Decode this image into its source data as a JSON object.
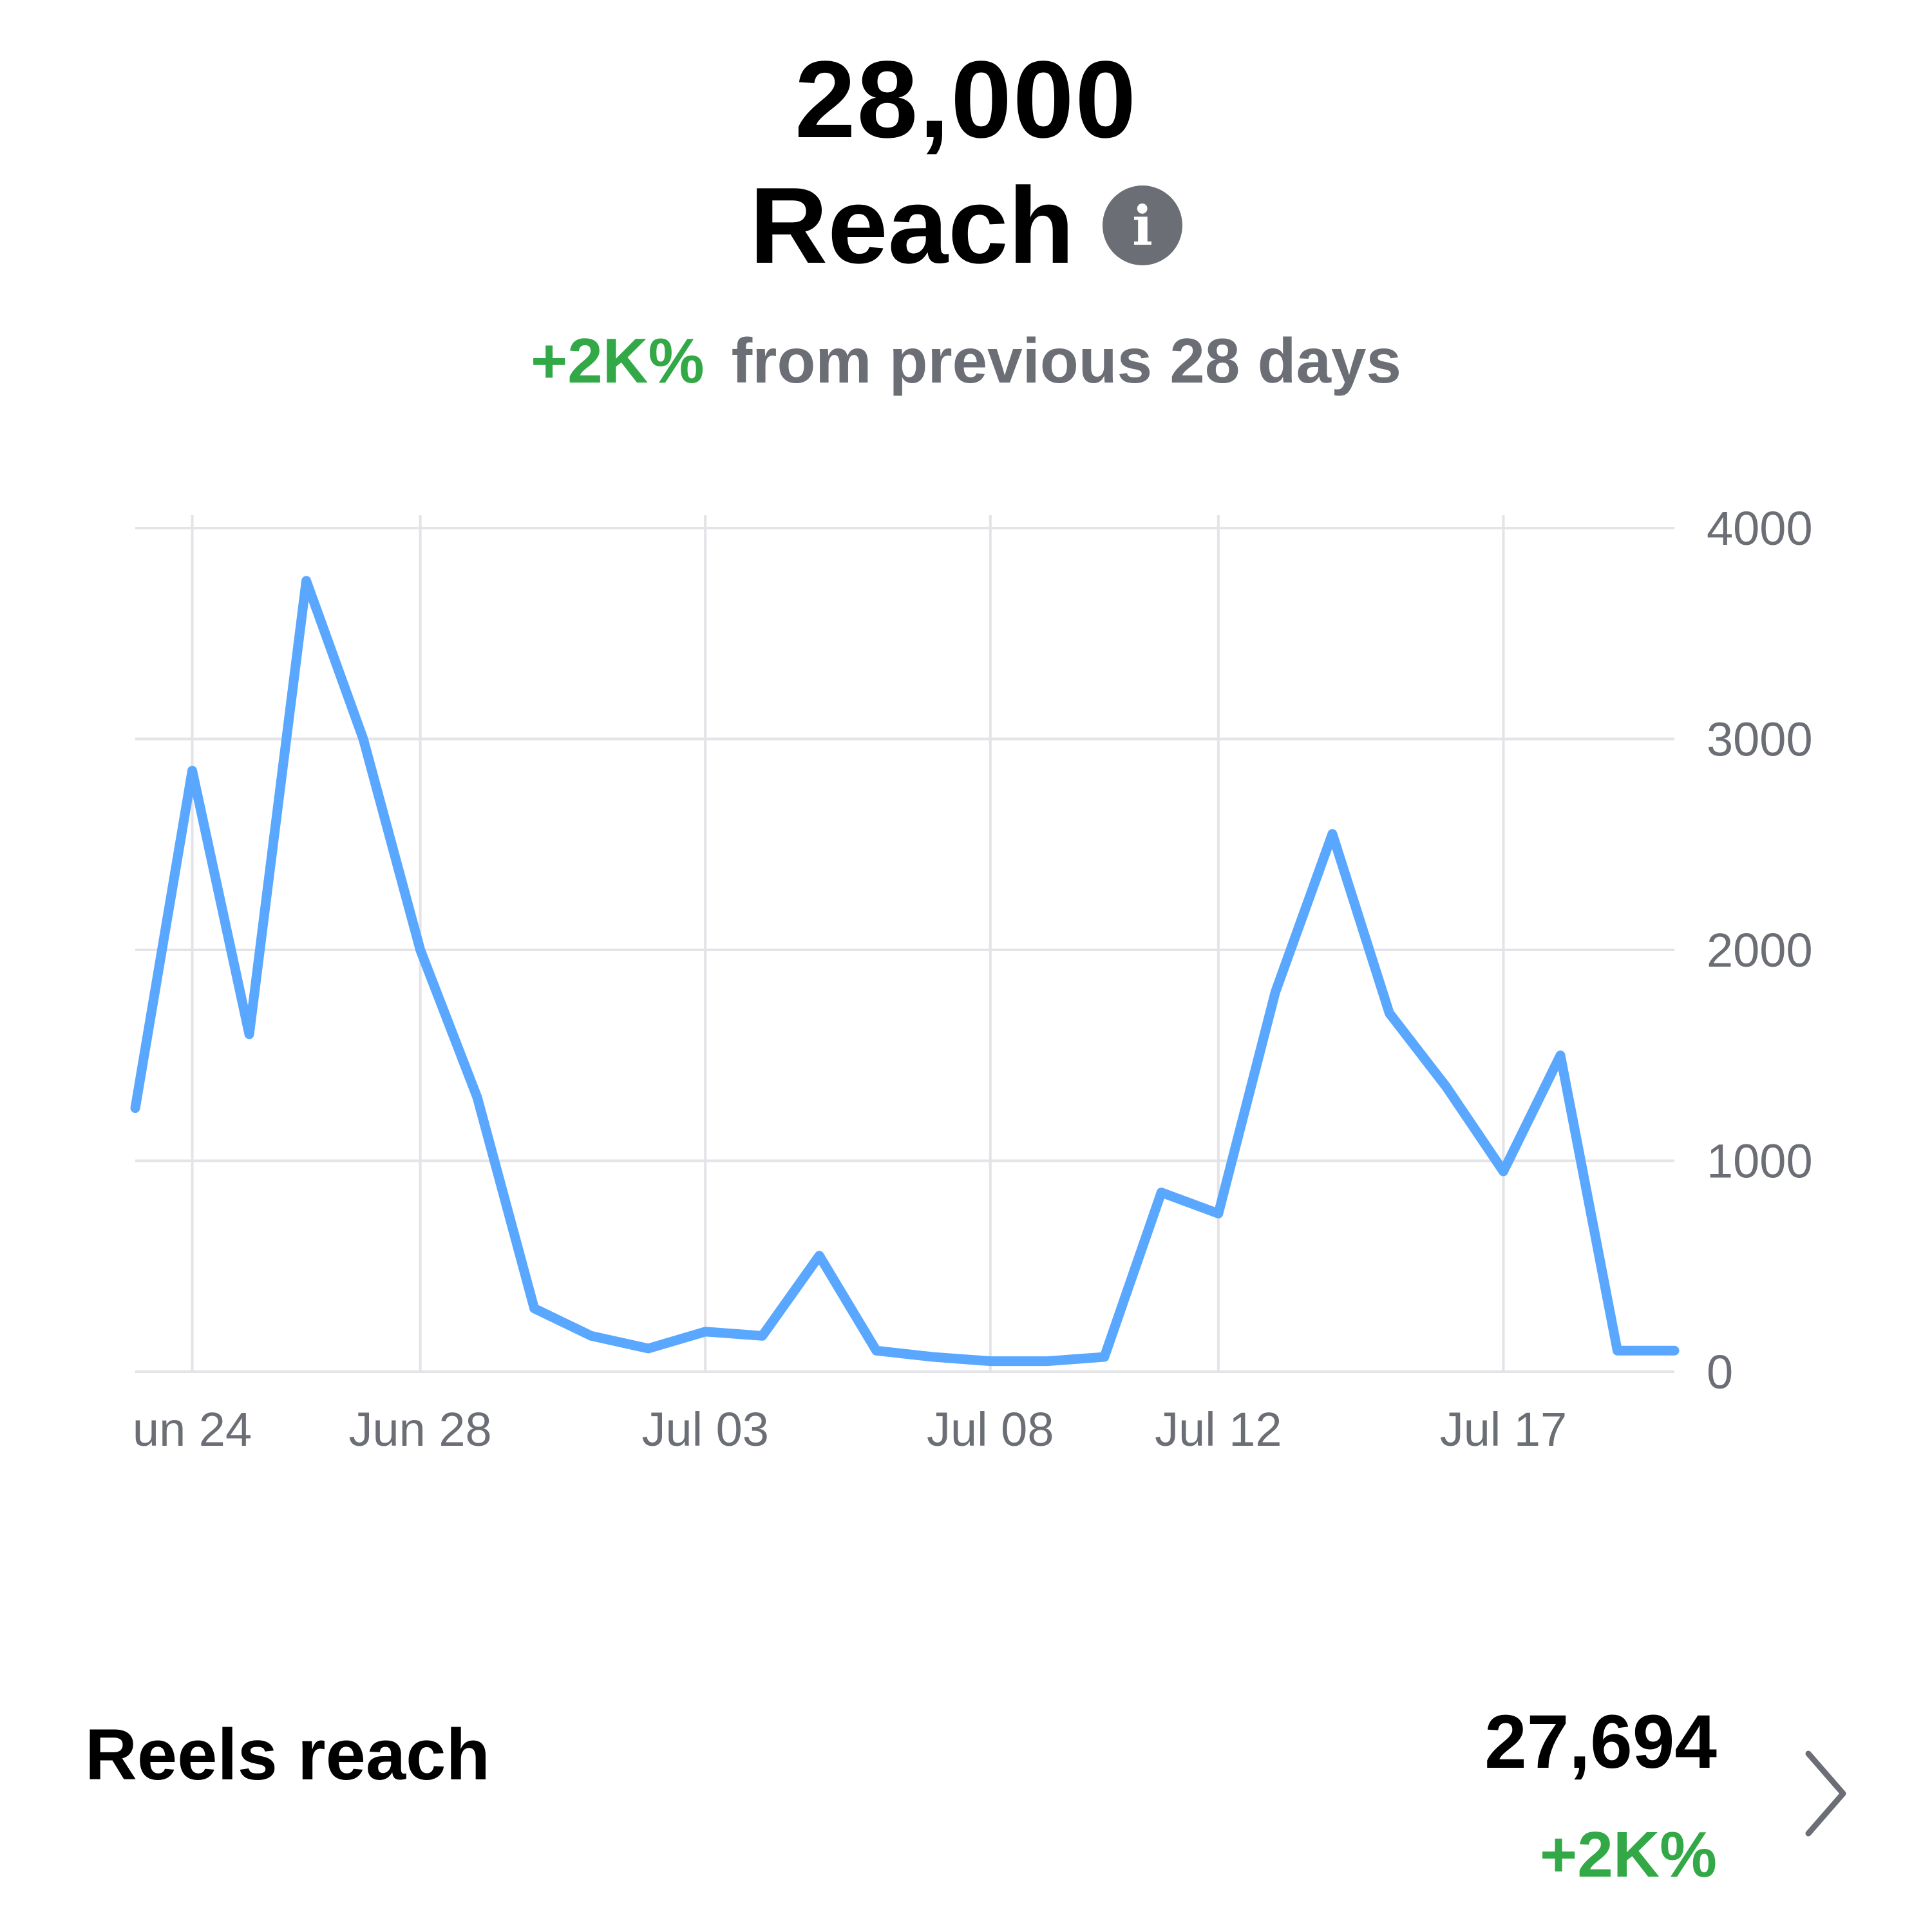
{
  "summary": {
    "total": "28,000",
    "metric_label": "Reach",
    "change_percent": "+2K%",
    "change_text": "from previous 28 days"
  },
  "colors": {
    "line": "#5aa7ff",
    "positive": "#32a846",
    "muted": "#6b6e75",
    "grid": "#e3e3e8"
  },
  "icons": {
    "info": "info-icon",
    "chevron": "chevron-right-icon"
  },
  "chart_data": {
    "type": "line",
    "title": "",
    "xlabel": "",
    "ylabel": "",
    "ylim": [
      0,
      4000
    ],
    "y_ticks": [
      "4000",
      "3000",
      "2000",
      "1000",
      "0"
    ],
    "y_axis_position": "right",
    "grid": true,
    "x_tick_labels": [
      "un 24",
      "Jun 28",
      "Jul 03",
      "Jul 08",
      "Jul 12",
      "Jul 17"
    ],
    "x": [
      "Jun 23",
      "Jun 24",
      "Jun 25",
      "Jun 26",
      "Jun 27",
      "Jun 28",
      "Jun 29",
      "Jun 30",
      "Jul 01",
      "Jul 02",
      "Jul 03",
      "Jul 04",
      "Jul 05",
      "Jul 06",
      "Jul 07",
      "Jul 08",
      "Jul 09",
      "Jul 10",
      "Jul 11",
      "Jul 12",
      "Jul 13",
      "Jul 14",
      "Jul 15",
      "Jul 16",
      "Jul 17",
      "Jul 18",
      "Jul 19",
      "Jul 20"
    ],
    "series": [
      {
        "values": [
          1250,
          2850,
          1600,
          3750,
          3000,
          2000,
          1300,
          300,
          170,
          110,
          190,
          170,
          550,
          100,
          70,
          50,
          50,
          70,
          850,
          750,
          1800,
          2550,
          1700,
          1350,
          950,
          1500,
          100,
          100
        ]
      }
    ]
  },
  "reels": {
    "label": "Reels reach",
    "value": "27,694",
    "change": "+2K%"
  }
}
